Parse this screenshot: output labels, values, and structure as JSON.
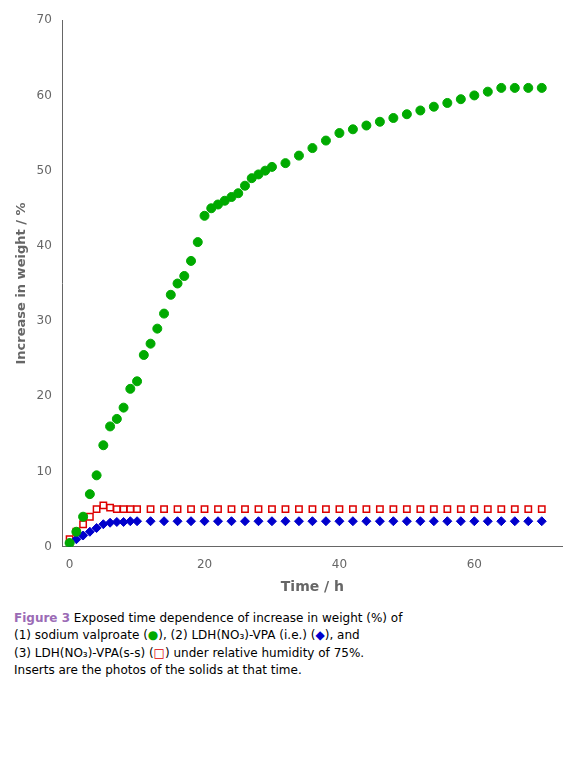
{
  "chart_data": {
    "type": "scatter",
    "x_label": "Time / h",
    "y_label": "Increase in weight / %",
    "xlim": [
      -1,
      73
    ],
    "ylim": [
      0,
      70
    ],
    "xticks": [
      0,
      20,
      40,
      60
    ],
    "yticks": [
      0,
      10,
      20,
      30,
      40,
      50,
      60,
      70
    ],
    "grid": false,
    "series": [
      {
        "color": "#dd0000",
        "marker": "open square",
        "x": [
          0,
          1,
          2,
          3,
          4,
          5,
          6,
          7,
          8,
          9,
          10,
          12,
          14,
          16,
          18,
          20,
          22,
          24,
          26,
          28,
          30,
          32,
          34,
          36,
          38,
          40,
          42,
          44,
          46,
          48,
          50,
          52,
          54,
          56,
          58,
          60,
          62,
          64,
          66,
          68,
          70
        ],
        "values": [
          1.0,
          2.0,
          3.0,
          4.0,
          5.0,
          5.5,
          5.2,
          5.0,
          5.0,
          5.0,
          5.0,
          5.0,
          5.0,
          5.0,
          5.0,
          5.0,
          5.0,
          5.0,
          5.0,
          5.0,
          5.0,
          5.0,
          5.0,
          5.0,
          5.0,
          5.0,
          5.0,
          5.0,
          5.0,
          5.0,
          5.0,
          5.0,
          5.0,
          5.0,
          5.0,
          5.0,
          5.0,
          5.0,
          5.0,
          5.0,
          5.0
        ]
      },
      {
        "color": "#0000cc",
        "marker": "diamond",
        "x": [
          0,
          1,
          2,
          3,
          4,
          5,
          6,
          7,
          8,
          9,
          10,
          12,
          14,
          16,
          18,
          20,
          22,
          24,
          26,
          28,
          30,
          32,
          34,
          36,
          38,
          40,
          42,
          44,
          46,
          48,
          50,
          52,
          54,
          56,
          58,
          60,
          62,
          64,
          66,
          68,
          70
        ],
        "values": [
          0.5,
          1.0,
          1.5,
          2.0,
          2.5,
          3.0,
          3.2,
          3.3,
          3.3,
          3.4,
          3.4,
          3.4,
          3.4,
          3.4,
          3.4,
          3.4,
          3.4,
          3.4,
          3.4,
          3.4,
          3.4,
          3.4,
          3.4,
          3.4,
          3.4,
          3.4,
          3.4,
          3.4,
          3.4,
          3.4,
          3.4,
          3.4,
          3.4,
          3.4,
          3.4,
          3.4,
          3.4,
          3.4,
          3.4,
          3.4,
          3.4
        ]
      },
      {
        "color": "#00aa00",
        "marker": "circle",
        "x": [
          0,
          1,
          2,
          3,
          4,
          5,
          6,
          7,
          8,
          9,
          10,
          11,
          12,
          13,
          14,
          15,
          16,
          17,
          18,
          19,
          20,
          21,
          22,
          23,
          24,
          25,
          26,
          27,
          28,
          29,
          30,
          32,
          34,
          36,
          38,
          40,
          42,
          44,
          46,
          48,
          50,
          52,
          54,
          56,
          58,
          60,
          62,
          64,
          66,
          68,
          70
        ],
        "values": [
          0.5,
          2,
          4,
          7,
          9.5,
          13.5,
          16,
          17,
          18.5,
          21,
          22,
          25.5,
          27,
          29,
          31,
          33.5,
          35,
          36,
          38,
          40.5,
          44,
          45,
          45.5,
          46,
          46.5,
          47,
          48,
          49,
          49.5,
          50,
          50.5,
          51,
          52,
          53,
          54,
          55,
          55.5,
          56,
          56.5,
          57,
          57.5,
          58,
          58.5,
          59,
          59.5,
          60,
          60.5,
          61,
          61,
          61,
          61
        ]
      }
    ],
    "annotations": [
      [
        {
          "text": "Figure 3",
          "color": "#9b6bb5"
        },
        {
          "text": " Exposed time dependence of increase in weight (%) of"
        }
      ],
      [
        {
          "text": "(1) sodium valproate ("
        },
        {
          "text": "●",
          "color": "#00aa00"
        },
        {
          "text": "), (2) LDH(NO₃)-VPA (i.e.) ("
        },
        {
          "text": "◆",
          "color": "#0000cc"
        },
        {
          "text": "), and"
        }
      ],
      [
        {
          "text": "(3) LDH(NO₃)-VPA(s-s) ("
        },
        {
          "text": "□",
          "color": "#dd0000"
        },
        {
          "text": ") under relative humidity of 75%."
        }
      ],
      [
        {
          "text": "Inserts are the photos of the solids at that time."
        }
      ]
    ]
  }
}
